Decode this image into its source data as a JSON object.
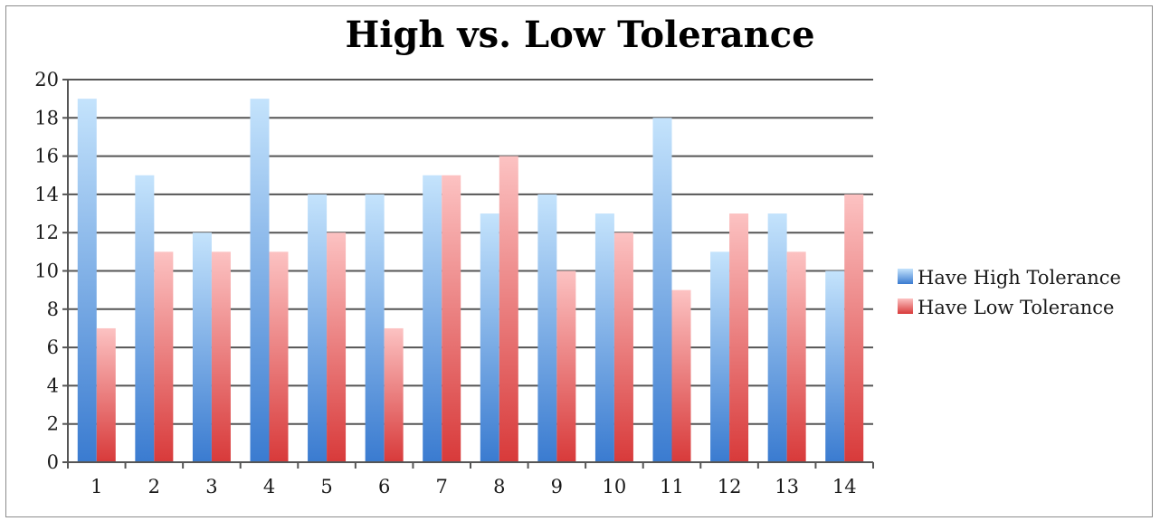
{
  "chart_data": {
    "type": "bar",
    "title": "High vs. Low Tolerance",
    "xlabel": "",
    "ylabel": "",
    "ylim": [
      0,
      20
    ],
    "yticks": [
      "0",
      "2",
      "4",
      "6",
      "8",
      "10",
      "12",
      "14",
      "16",
      "18",
      "20"
    ],
    "categories": [
      "1",
      "2",
      "3",
      "4",
      "5",
      "6",
      "7",
      "8",
      "9",
      "10",
      "11",
      "12",
      "13",
      "14"
    ],
    "grid": true,
    "legend_position": "right",
    "series": [
      {
        "name": "Have High Tolerance",
        "color": "#5b9bd5",
        "values": [
          19,
          15,
          12,
          19,
          14,
          14,
          15,
          13,
          14,
          13,
          18,
          11,
          13,
          10
        ]
      },
      {
        "name": "Have Low Tolerance",
        "color": "#e05555",
        "values": [
          7,
          11,
          11,
          11,
          12,
          7,
          15,
          16,
          10,
          12,
          9,
          13,
          11,
          14
        ]
      }
    ]
  }
}
